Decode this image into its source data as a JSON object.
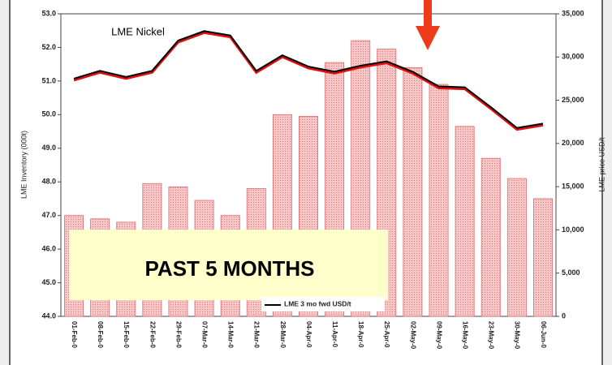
{
  "chart_data": {
    "type": "bar",
    "title": "LME Nickel",
    "annotation": "PAST 5 MONTHS",
    "y_label": "LME Inventory (000t)",
    "y2_label": "LME price USD/t",
    "categories": [
      "01-Feb-0",
      "08-Feb-0",
      "15-Feb-0",
      "22-Feb-0",
      "29-Feb-0",
      "07-Mar-0",
      "14-Mar-0",
      "21-Mar-0",
      "28-Mar-0",
      "04-Apr-0",
      "11-Apr-0",
      "18-Apr-0",
      "25-Apr-0",
      "02-May-0",
      "09-May-0",
      "16-May-0",
      "23-May-0",
      "30-May-0",
      "06-Jun-0"
    ],
    "series": [
      {
        "color": "#f5b5b5",
        "values": [
          47.0,
          46.9,
          46.8,
          47.95,
          47.85,
          47.45,
          47.0,
          47.8,
          50.0,
          49.95,
          51.55,
          52.2,
          51.95,
          51.4,
          50.9,
          49.65,
          48.7,
          48.1,
          47.5
        ]
      },
      {
        "name": "LME 3 mo fwd USD/t",
        "type": "line",
        "axis": "y2",
        "color": "#000000",
        "values": [
          27500,
          28400,
          27700,
          28400,
          31900,
          33000,
          32500,
          28400,
          30200,
          28900,
          28300,
          29000,
          29500,
          28300,
          26600,
          26500,
          24200,
          21800,
          22300
        ]
      }
    ],
    "ylim": [
      44,
      53
    ],
    "yticks": [
      {
        "value": 44,
        "label": "44.0"
      },
      {
        "value": 45,
        "label": "45.0"
      },
      {
        "value": 46,
        "label": "46.0"
      },
      {
        "value": 47,
        "label": "47.0"
      },
      {
        "value": 48,
        "label": "48.0"
      },
      {
        "value": 49,
        "label": "49.0"
      },
      {
        "value": 50,
        "label": "50.0"
      },
      {
        "value": 51,
        "label": "51.0"
      },
      {
        "value": 52,
        "label": "52.0"
      },
      {
        "value": 53,
        "label": "53.0"
      }
    ],
    "y2lim": [
      0,
      35000
    ],
    "y2ticks": [
      0,
      {
        "value": 5000,
        "label": "5,000"
      },
      {
        "value": 10000,
        "label": "10,000"
      },
      {
        "value": 15000,
        "label": "15,000"
      },
      {
        "value": 20000,
        "label": "20,000"
      },
      {
        "value": 25000,
        "label": "25,000"
      },
      {
        "value": 30000,
        "label": "30,000"
      },
      {
        "value": 35000,
        "label": "35,000"
      }
    ],
    "grid": false
  }
}
